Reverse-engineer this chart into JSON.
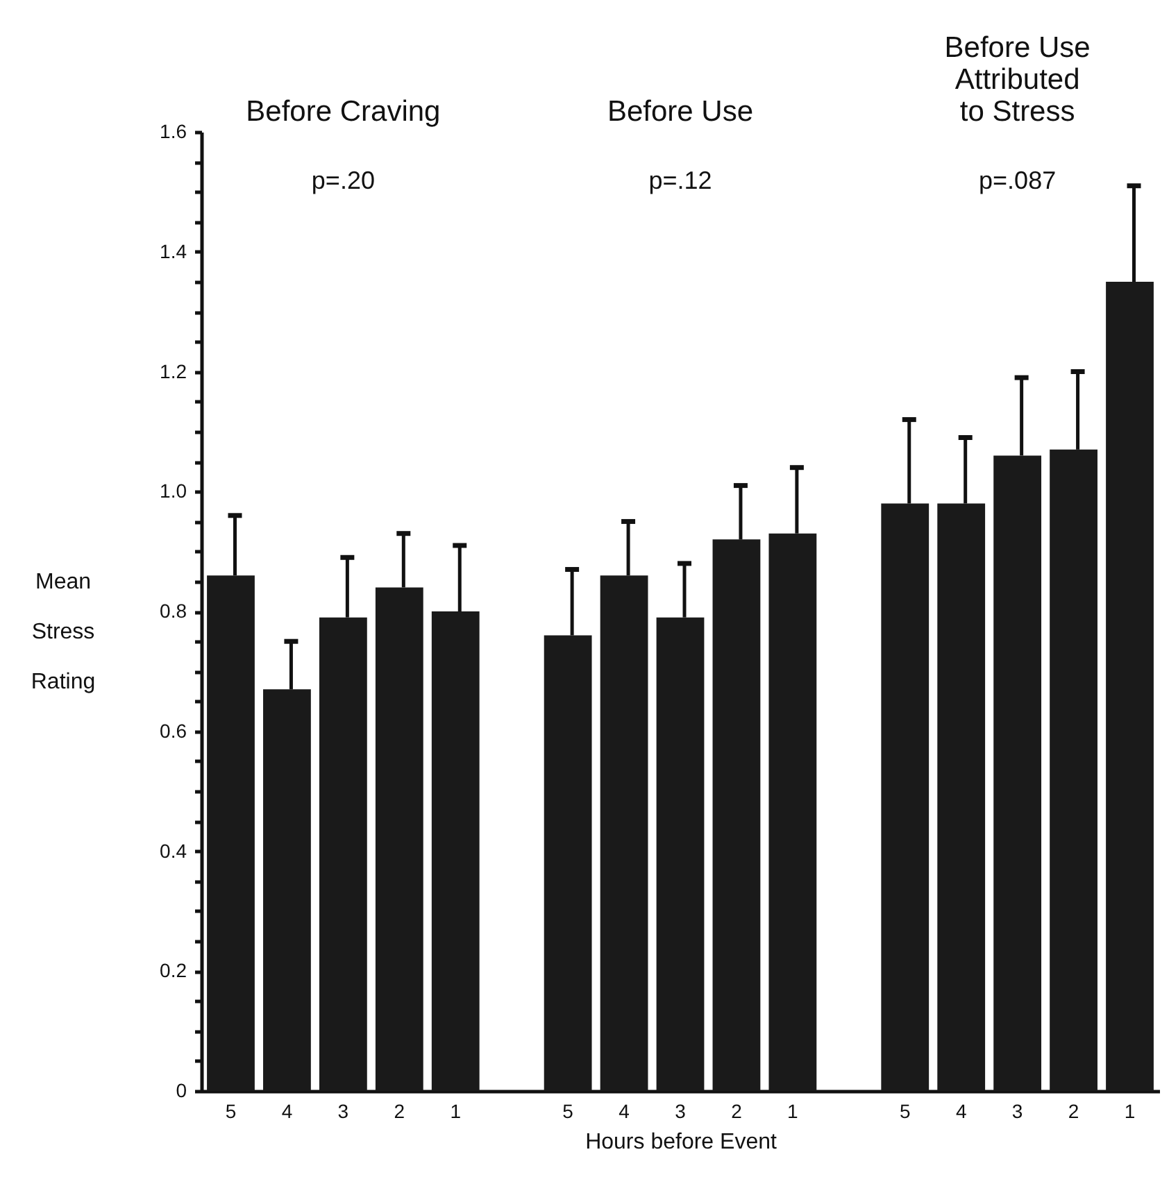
{
  "chart_data": {
    "type": "bar",
    "xlabel": "Hours before Event",
    "ylabel": "Mean Stress Rating",
    "categories": [
      "5",
      "4",
      "3",
      "2",
      "1",
      null,
      "5",
      "4",
      "3",
      "2",
      "1",
      null,
      "5",
      "4",
      "3",
      "2",
      "1"
    ],
    "values": [
      0.86,
      0.67,
      0.79,
      0.84,
      0.8,
      null,
      0.76,
      0.86,
      0.79,
      0.92,
      0.93,
      null,
      0.98,
      0.98,
      1.06,
      1.07,
      1.35
    ],
    "errors": [
      [
        0.86,
        0.96
      ],
      [
        0.67,
        0.75
      ],
      [
        0.79,
        0.89
      ],
      [
        0.84,
        0.93
      ],
      [
        0.8,
        0.91
      ],
      null,
      [
        0.76,
        0.87
      ],
      [
        0.86,
        0.95
      ],
      [
        0.79,
        0.88
      ],
      [
        0.92,
        1.01
      ],
      [
        0.93,
        1.04
      ],
      null,
      [
        0.98,
        1.12
      ],
      [
        0.98,
        1.09
      ],
      [
        1.06,
        1.19
      ],
      [
        1.07,
        1.2
      ],
      [
        1.35,
        1.51
      ]
    ],
    "color": "#1a1a1a",
    "ylim": [
      0,
      1.6
    ],
    "yticks": [
      0,
      {
        "value": 0.05,
        "label": null
      },
      {
        "value": 0.1,
        "label": null
      },
      {
        "value": 0.15,
        "label": null
      },
      0.2,
      {
        "value": 0.25,
        "label": null
      },
      {
        "value": 0.3,
        "label": null
      },
      {
        "value": 0.35,
        "label": null
      },
      0.4,
      {
        "value": 0.45,
        "label": null
      },
      {
        "value": 0.5,
        "label": null
      },
      {
        "value": 0.55,
        "label": null
      },
      0.6,
      {
        "value": 0.65,
        "label": null
      },
      {
        "value": 0.7,
        "label": null
      },
      {
        "value": 0.75,
        "label": null
      },
      0.8,
      {
        "value": 0.85,
        "label": null
      },
      {
        "value": 0.9,
        "label": null
      },
      {
        "value": 0.95,
        "label": null
      },
      {
        "value": 1,
        "label": "1.0"
      },
      {
        "value": 1.05,
        "label": null
      },
      {
        "value": 1.1,
        "label": null
      },
      {
        "value": 1.15,
        "label": null
      },
      1.2,
      {
        "value": 1.25,
        "label": null
      },
      {
        "value": 1.3,
        "label": null
      },
      {
        "value": 1.35,
        "label": null
      },
      1.4,
      {
        "value": 1.45,
        "label": null
      },
      {
        "value": 1.5,
        "label": null
      },
      {
        "value": 1.55,
        "label": null
      },
      1.6
    ],
    "grid": false,
    "annotations": [
      "Before Craving",
      "Before Use",
      "Before Use Attributed to Stress",
      "p=.20",
      "p=.12",
      "p=.087"
    ]
  }
}
